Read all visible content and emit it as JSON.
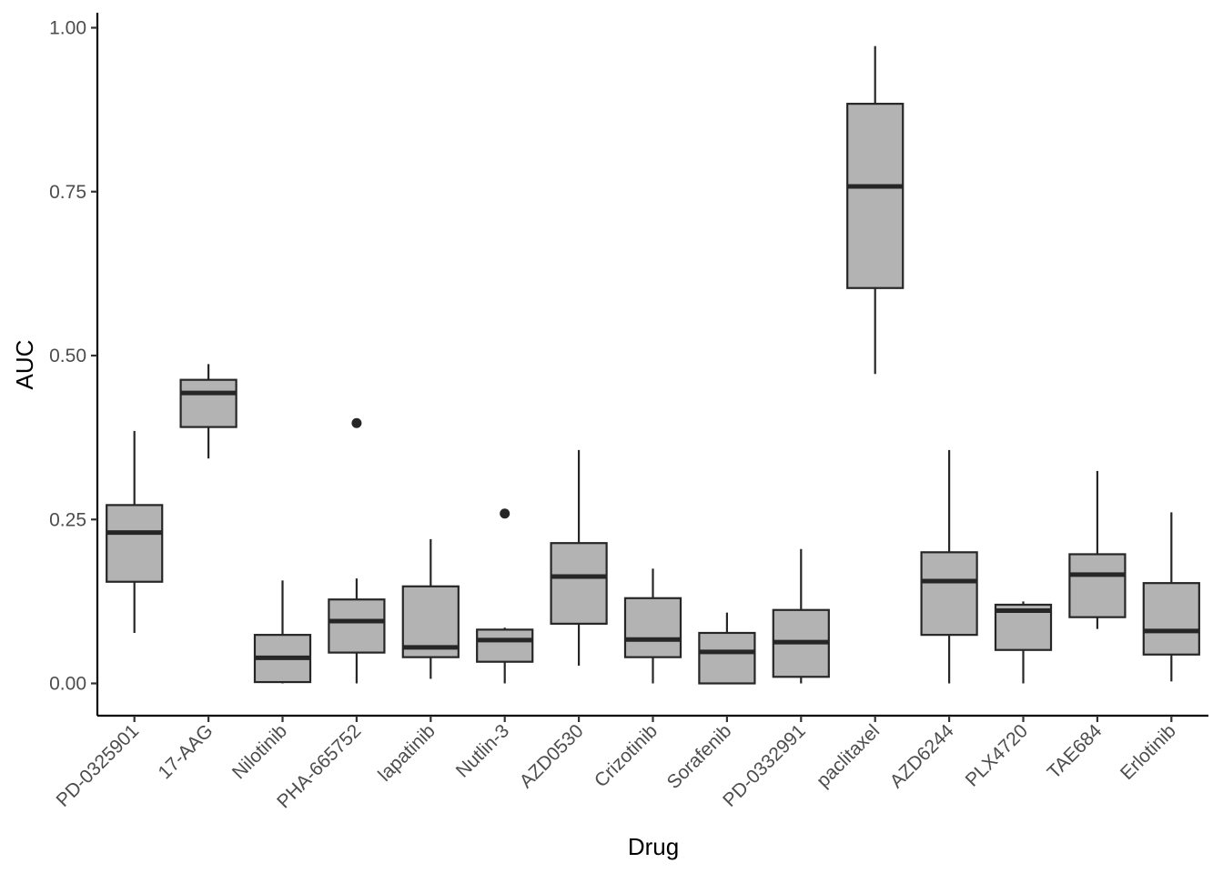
{
  "chart_data": {
    "type": "boxplot",
    "xlabel": "Drug",
    "ylabel": "AUC",
    "ylim": [
      -0.05,
      1.03
    ],
    "yticks": [
      0,
      0.25,
      0.5,
      0.75,
      1.0
    ],
    "ytick_labels": [
      "0.00",
      "0.25",
      "0.50",
      "0.75",
      "1.00"
    ],
    "grid": false,
    "box_fill": "#b3b3b3",
    "line_color": "#262626",
    "categories": [
      "PD-0325901",
      "17-AAG",
      "Nilotinib",
      "PHA-665752",
      "lapatinib",
      "Nutlin-3",
      "AZD0530",
      "Crizotinib",
      "Sorafenib",
      "PD-0332991",
      "paclitaxel",
      "AZD6244",
      "PLX4720",
      "TAE684",
      "Erlotinib"
    ],
    "boxes": [
      {
        "whisker_low": 0.077,
        "q1": 0.155,
        "median": 0.23,
        "q3": 0.272,
        "whisker_high": 0.385,
        "outliers": []
      },
      {
        "whisker_low": 0.343,
        "q1": 0.391,
        "median": 0.443,
        "q3": 0.463,
        "whisker_high": 0.487,
        "outliers": []
      },
      {
        "whisker_low": 0.0,
        "q1": 0.002,
        "median": 0.039,
        "q3": 0.074,
        "whisker_high": 0.157,
        "outliers": []
      },
      {
        "whisker_low": 0.0,
        "q1": 0.047,
        "median": 0.095,
        "q3": 0.128,
        "whisker_high": 0.16,
        "outliers": [
          0.397
        ]
      },
      {
        "whisker_low": 0.007,
        "q1": 0.04,
        "median": 0.055,
        "q3": 0.148,
        "whisker_high": 0.22,
        "outliers": []
      },
      {
        "whisker_low": 0.0,
        "q1": 0.033,
        "median": 0.066,
        "q3": 0.082,
        "whisker_high": 0.085,
        "outliers": [
          0.259
        ]
      },
      {
        "whisker_low": 0.027,
        "q1": 0.091,
        "median": 0.163,
        "q3": 0.214,
        "whisker_high": 0.356,
        "outliers": []
      },
      {
        "whisker_low": 0.0,
        "q1": 0.04,
        "median": 0.067,
        "q3": 0.13,
        "whisker_high": 0.175,
        "outliers": []
      },
      {
        "whisker_low": 0.0,
        "q1": 0.0,
        "median": 0.048,
        "q3": 0.077,
        "whisker_high": 0.108,
        "outliers": []
      },
      {
        "whisker_low": 0.0,
        "q1": 0.01,
        "median": 0.063,
        "q3": 0.112,
        "whisker_high": 0.205,
        "outliers": []
      },
      {
        "whisker_low": 0.472,
        "q1": 0.603,
        "median": 0.758,
        "q3": 0.884,
        "whisker_high": 0.972,
        "outliers": []
      },
      {
        "whisker_low": 0.0,
        "q1": 0.074,
        "median": 0.156,
        "q3": 0.2,
        "whisker_high": 0.356,
        "outliers": []
      },
      {
        "whisker_low": 0.0,
        "q1": 0.051,
        "median": 0.111,
        "q3": 0.12,
        "whisker_high": 0.125,
        "outliers": []
      },
      {
        "whisker_low": 0.083,
        "q1": 0.101,
        "median": 0.166,
        "q3": 0.197,
        "whisker_high": 0.324,
        "outliers": []
      },
      {
        "whisker_low": 0.003,
        "q1": 0.044,
        "median": 0.08,
        "q3": 0.153,
        "whisker_high": 0.261,
        "outliers": []
      }
    ]
  }
}
